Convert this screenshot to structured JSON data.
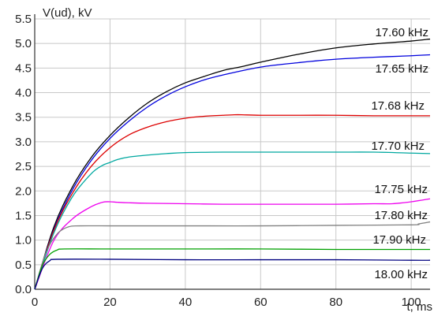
{
  "chart_data": {
    "type": "line",
    "title": "",
    "ylabel": "V(ud), kV",
    "xlabel": "t, ms",
    "xlim": [
      0,
      105
    ],
    "ylim": [
      0,
      5.5
    ],
    "x_ticks": [
      "0",
      "20",
      "40",
      "60",
      "80",
      "100"
    ],
    "y_ticks": [
      "0.0",
      "0.5",
      "1.0",
      "1.5",
      "2.0",
      "2.5",
      "3.0",
      "3.5",
      "4.0",
      "4.5",
      "5.0",
      "5.5"
    ],
    "grid": true,
    "series": [
      {
        "name": "17.60 kHz",
        "color": "#000000",
        "x": [
          0,
          5,
          10,
          15,
          20,
          25,
          30,
          35,
          40,
          45,
          50,
          55,
          60,
          70,
          80,
          90,
          100,
          105
        ],
        "y": [
          0,
          1.25,
          2.08,
          2.68,
          3.13,
          3.49,
          3.79,
          4.02,
          4.2,
          4.33,
          4.45,
          4.53,
          4.62,
          4.78,
          4.91,
          4.99,
          5.05,
          5.09
        ]
      },
      {
        "name": "17.65 kHz",
        "color": "#0000dd",
        "x": [
          0,
          5,
          10,
          15,
          20,
          25,
          30,
          35,
          40,
          45,
          50,
          60,
          70,
          80,
          90,
          100,
          105
        ],
        "y": [
          0,
          1.2,
          2.02,
          2.62,
          3.07,
          3.42,
          3.71,
          3.94,
          4.12,
          4.26,
          4.36,
          4.52,
          4.61,
          4.68,
          4.72,
          4.75,
          4.77
        ]
      },
      {
        "name": "17.68 kHz",
        "color": "#dd0000",
        "x": [
          0,
          5,
          10,
          15,
          20,
          25,
          30,
          35,
          40,
          45,
          50,
          53,
          55,
          60,
          70,
          80,
          90,
          100,
          105
        ],
        "y": [
          0,
          1.18,
          1.95,
          2.5,
          2.88,
          3.14,
          3.3,
          3.41,
          3.48,
          3.52,
          3.54,
          3.55,
          3.55,
          3.54,
          3.54,
          3.54,
          3.53,
          3.53,
          3.53
        ]
      },
      {
        "name": "17.70 kHz",
        "color": "#00a8a0",
        "x": [
          0,
          5,
          10,
          15,
          18,
          20,
          22,
          25,
          30,
          35,
          40,
          50,
          60,
          70,
          80,
          90,
          100,
          105
        ],
        "y": [
          0,
          1.13,
          1.88,
          2.35,
          2.52,
          2.58,
          2.64,
          2.69,
          2.73,
          2.76,
          2.78,
          2.79,
          2.79,
          2.79,
          2.79,
          2.79,
          2.77,
          2.76
        ]
      },
      {
        "name": "17.75 kHz",
        "color": "#ee00ee",
        "x": [
          0,
          5,
          10,
          15,
          18,
          20,
          22,
          25,
          30,
          40,
          50,
          60,
          70,
          80,
          90,
          95,
          100,
          105
        ],
        "y": [
          0,
          0.98,
          1.43,
          1.68,
          1.77,
          1.78,
          1.77,
          1.76,
          1.75,
          1.74,
          1.73,
          1.73,
          1.73,
          1.73,
          1.74,
          1.74,
          1.78,
          1.84
        ]
      },
      {
        "name": "17.80 kHz",
        "color": "#808080",
        "x": [
          0,
          3,
          6,
          9,
          12,
          20,
          40,
          60,
          80,
          100,
          102,
          105
        ],
        "y": [
          0,
          0.75,
          1.13,
          1.27,
          1.29,
          1.29,
          1.29,
          1.29,
          1.3,
          1.31,
          1.33,
          1.37
        ]
      },
      {
        "name": "17.90 kHz",
        "color": "#00a000",
        "x": [
          0,
          2,
          4,
          6,
          8,
          20,
          40,
          60,
          80,
          100,
          105
        ],
        "y": [
          0,
          0.48,
          0.71,
          0.8,
          0.82,
          0.82,
          0.82,
          0.82,
          0.81,
          0.81,
          0.81
        ]
      },
      {
        "name": "18.00 kHz",
        "color": "#000080",
        "x": [
          0,
          2,
          4,
          6,
          20,
          40,
          60,
          80,
          100,
          105
        ],
        "y": [
          0,
          0.42,
          0.58,
          0.61,
          0.61,
          0.6,
          0.6,
          0.6,
          0.59,
          0.59
        ]
      }
    ]
  }
}
